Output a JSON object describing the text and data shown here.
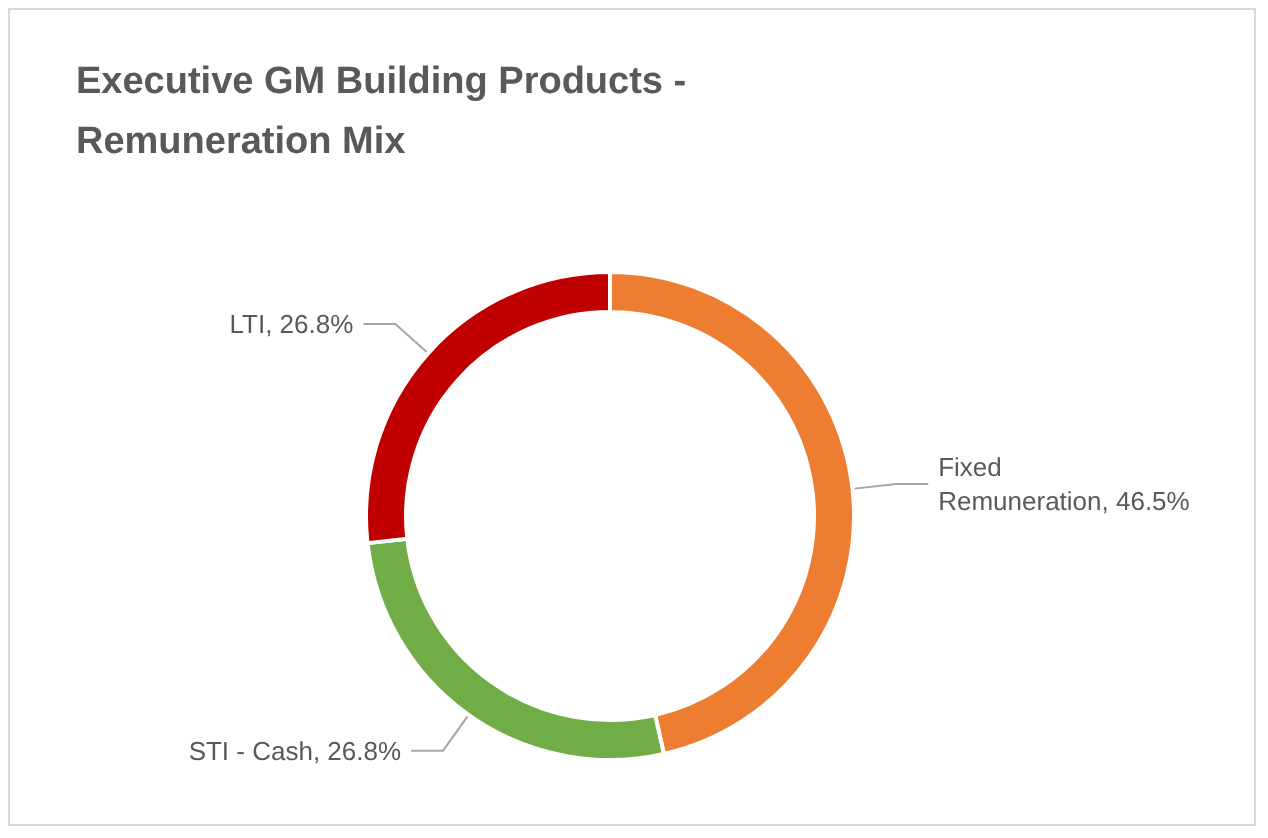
{
  "chart_data": {
    "type": "donut",
    "title": "Executive GM Building Products - Remuneration Mix",
    "categories": [
      "Fixed Remuneration",
      "STI - Cash",
      "LTI"
    ],
    "values": [
      46.5,
      26.8,
      26.8
    ],
    "value_labels": [
      "46.5%",
      "26.8%",
      "26.8%"
    ],
    "colors": [
      "#ed7d31",
      "#70ad47",
      "#c00000"
    ],
    "legend": false
  }
}
